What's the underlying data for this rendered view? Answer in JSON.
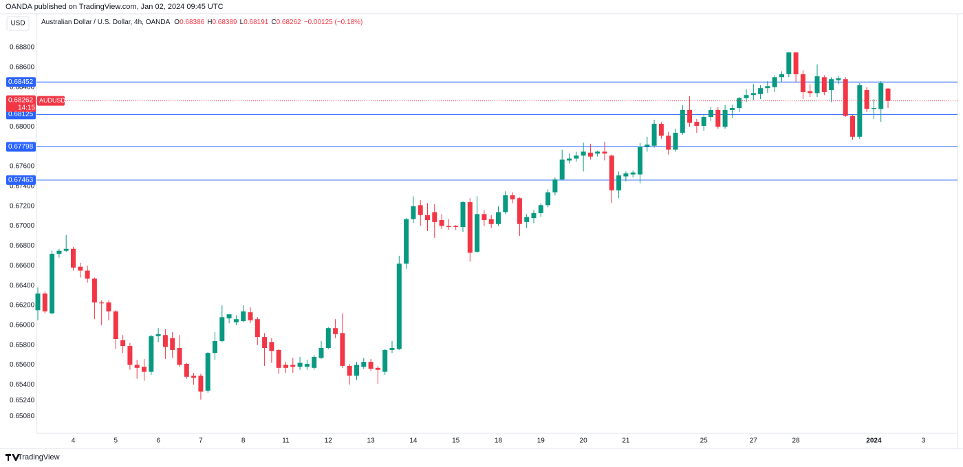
{
  "header": "OANDA published on TradingView.com, Jan 02, 2024 09:45 UTC",
  "footer": "TradingView",
  "currency_button": "USD",
  "chart_data": {
    "type": "candlestick",
    "title": "Australian Dollar / U.S. Dollar, 4h, OANDA",
    "ohlc_legend": [
      {
        "label": "O",
        "value": 0.68386
      },
      {
        "label": "H",
        "value": 0.68389
      },
      {
        "label": "L",
        "value": 0.68191
      },
      {
        "label": "C",
        "value": 0.68262
      }
    ],
    "change": "−0.00125 (−0.18%)",
    "up_color": "#089981",
    "down_color": "#f23645",
    "open": [
      0.6615,
      0.6632,
      0.6612,
      0.6672,
      0.6675,
      0.6677,
      0.6659,
      0.6655,
      0.6647,
      0.6623,
      0.6623,
      0.6614,
      0.6585,
      0.6579,
      0.656,
      0.6558,
      0.6553,
      0.6589,
      0.659,
      0.6587,
      0.6577,
      0.6561,
      0.6549,
      0.6549,
      0.6534,
      0.6572,
      0.6584,
      0.6607,
      0.6603,
      0.6604,
      0.6613,
      0.6606,
      0.6588,
      0.6583,
      0.6575,
      0.656,
      0.656,
      0.6558,
      0.6558,
      0.6557,
      0.6567,
      0.6577,
      0.6597,
      0.6592,
      0.6559,
      0.6549,
      0.6558,
      0.6563,
      0.6557,
      0.6553,
      0.6575,
      0.6576,
      0.6662,
      0.6707,
      0.6721,
      0.6711,
      0.6714,
      0.6706,
      0.67,
      0.67,
      0.6699,
      0.6724,
      0.6674,
      0.6712,
      0.6707,
      0.6702,
      0.6714,
      0.6731,
      0.6728,
      0.6704,
      0.6708,
      0.6713,
      0.6721,
      0.6734,
      0.6747,
      0.6766,
      0.6768,
      0.6771,
      0.6774,
      0.6773,
      0.6775,
      0.6771,
      0.6736,
      0.675,
      0.6752,
      0.6752,
      0.678,
      0.6781,
      0.6803,
      0.6791,
      0.6777,
      0.6794,
      0.6817,
      0.6805,
      0.6801,
      0.681,
      0.6817,
      0.68,
      0.6817,
      0.6819,
      0.6829,
      0.6832,
      0.6833,
      0.6839,
      0.684,
      0.685,
      0.6853,
      0.6875,
      0.6853,
      0.6836,
      0.6834,
      0.685,
      0.6837,
      0.6847,
      0.6848,
      0.6811,
      0.679,
      0.6837,
      0.6818,
      0.6818,
      0.68386
    ],
    "high": [
      0.6638,
      0.6634,
      0.6675,
      0.6677,
      0.6691,
      0.6679,
      0.6663,
      0.666,
      0.6648,
      0.6625,
      0.6625,
      0.6615,
      0.659,
      0.6582,
      0.6565,
      0.6566,
      0.659,
      0.6597,
      0.6596,
      0.6593,
      0.659,
      0.6562,
      0.6552,
      0.6551,
      0.6573,
      0.6593,
      0.662,
      0.6611,
      0.661,
      0.662,
      0.6618,
      0.6608,
      0.6592,
      0.6587,
      0.6576,
      0.6563,
      0.6567,
      0.6568,
      0.6565,
      0.657,
      0.6584,
      0.6598,
      0.6606,
      0.6612,
      0.6561,
      0.6563,
      0.6567,
      0.6566,
      0.6559,
      0.6576,
      0.6584,
      0.667,
      0.6708,
      0.673,
      0.6726,
      0.6723,
      0.6722,
      0.6712,
      0.6707,
      0.6701,
      0.6725,
      0.6728,
      0.673,
      0.6716,
      0.6711,
      0.672,
      0.6735,
      0.6734,
      0.6729,
      0.6712,
      0.6716,
      0.6723,
      0.6737,
      0.6749,
      0.6777,
      0.6773,
      0.6775,
      0.6784,
      0.6783,
      0.6776,
      0.6785,
      0.6772,
      0.6755,
      0.6755,
      0.6756,
      0.6784,
      0.679,
      0.6807,
      0.6805,
      0.6795,
      0.6798,
      0.6822,
      0.6831,
      0.6808,
      0.6812,
      0.682,
      0.682,
      0.6822,
      0.6822,
      0.683,
      0.6838,
      0.6843,
      0.6842,
      0.6846,
      0.6852,
      0.6856,
      0.6875,
      0.6875,
      0.6857,
      0.6843,
      0.6863,
      0.6852,
      0.685,
      0.6851,
      0.685,
      0.6812,
      0.6844,
      0.684,
      0.6828,
      0.6846,
      0.68389
    ],
    "low": [
      0.6605,
      0.6612,
      0.6611,
      0.6668,
      0.6674,
      0.6655,
      0.6648,
      0.6643,
      0.6606,
      0.66,
      0.6605,
      0.6576,
      0.6572,
      0.6555,
      0.6546,
      0.6544,
      0.655,
      0.6583,
      0.6566,
      0.6567,
      0.6558,
      0.6546,
      0.654,
      0.6525,
      0.6532,
      0.6565,
      0.6583,
      0.6602,
      0.66,
      0.6603,
      0.6602,
      0.658,
      0.6559,
      0.6562,
      0.6551,
      0.6552,
      0.6552,
      0.6555,
      0.6555,
      0.6555,
      0.6566,
      0.6576,
      0.6587,
      0.6557,
      0.654,
      0.6545,
      0.6556,
      0.6554,
      0.6541,
      0.655,
      0.6572,
      0.6575,
      0.6657,
      0.6703,
      0.67,
      0.6695,
      0.6688,
      0.6697,
      0.6696,
      0.6696,
      0.6694,
      0.6664,
      0.6673,
      0.67,
      0.6698,
      0.67,
      0.6712,
      0.6723,
      0.669,
      0.6698,
      0.6703,
      0.6709,
      0.6719,
      0.6731,
      0.6746,
      0.6763,
      0.6765,
      0.6755,
      0.6767,
      0.677,
      0.6766,
      0.6723,
      0.6728,
      0.6745,
      0.6749,
      0.6743,
      0.6775,
      0.6779,
      0.6788,
      0.6772,
      0.6775,
      0.6792,
      0.68,
      0.6794,
      0.6796,
      0.6806,
      0.6798,
      0.6798,
      0.6809,
      0.6815,
      0.6825,
      0.6827,
      0.6828,
      0.6834,
      0.6835,
      0.6845,
      0.685,
      0.6845,
      0.6828,
      0.683,
      0.683,
      0.6832,
      0.6825,
      0.6843,
      0.681,
      0.6787,
      0.6788,
      0.6815,
      0.6808,
      0.6805,
      0.68191
    ],
    "close": [
      0.6632,
      0.6614,
      0.6672,
      0.6675,
      0.6677,
      0.6658,
      0.6655,
      0.6647,
      0.6623,
      0.6622,
      0.6614,
      0.6586,
      0.6579,
      0.656,
      0.6557,
      0.6553,
      0.6589,
      0.6591,
      0.6578,
      0.6575,
      0.656,
      0.6548,
      0.6547,
      0.6533,
      0.6572,
      0.6584,
      0.6608,
      0.6611,
      0.6606,
      0.6614,
      0.6605,
      0.6588,
      0.6577,
      0.6574,
      0.6557,
      0.6557,
      0.6558,
      0.6562,
      0.6561,
      0.6568,
      0.6577,
      0.6597,
      0.6591,
      0.6559,
      0.6549,
      0.656,
      0.6563,
      0.6556,
      0.6555,
      0.6575,
      0.6577,
      0.6662,
      0.6707,
      0.672,
      0.6711,
      0.6706,
      0.6704,
      0.67,
      0.6699,
      0.6699,
      0.6724,
      0.6673,
      0.6712,
      0.6706,
      0.6702,
      0.6714,
      0.6731,
      0.6727,
      0.6702,
      0.6709,
      0.6713,
      0.6721,
      0.6734,
      0.6747,
      0.6767,
      0.6768,
      0.6771,
      0.6775,
      0.677,
      0.6775,
      0.6773,
      0.6736,
      0.6751,
      0.6753,
      0.6754,
      0.678,
      0.6782,
      0.6803,
      0.6791,
      0.6777,
      0.6794,
      0.6817,
      0.6804,
      0.6801,
      0.681,
      0.6817,
      0.68,
      0.6817,
      0.6819,
      0.6829,
      0.6832,
      0.6834,
      0.6839,
      0.6841,
      0.685,
      0.6853,
      0.6875,
      0.6853,
      0.6835,
      0.6834,
      0.6851,
      0.6835,
      0.6848,
      0.6849,
      0.6811,
      0.679,
      0.6842,
      0.6818,
      0.6819,
      0.6844,
      0.68262
    ],
    "xticks": [
      {
        "value": 5,
        "label": "4"
      },
      {
        "value": 11,
        "label": "5"
      },
      {
        "value": 17,
        "label": "6"
      },
      {
        "value": 23,
        "label": "7"
      },
      {
        "value": 29,
        "label": "8"
      },
      {
        "value": 35,
        "label": "11"
      },
      {
        "value": 41,
        "label": "12"
      },
      {
        "value": 47,
        "label": "13"
      },
      {
        "value": 53,
        "label": "14"
      },
      {
        "value": 59,
        "label": "15"
      },
      {
        "value": 65,
        "label": "18"
      },
      {
        "value": 71,
        "label": "19"
      },
      {
        "value": 77,
        "label": "20"
      },
      {
        "value": 83,
        "label": "21"
      },
      {
        "value": 94,
        "label": "25"
      },
      {
        "value": 101,
        "label": "27"
      },
      {
        "value": 107,
        "label": "28"
      },
      {
        "value": 118,
        "label": "2024"
      },
      {
        "value": 125,
        "label": "3"
      }
    ],
    "ylim": [
      0.6491,
      0.6914
    ],
    "yticks": [
      {
        "value": 0.688,
        "label": "0.68800"
      },
      {
        "value": 0.686,
        "label": "0.68600"
      },
      {
        "value": 0.684,
        "label": "0.68400"
      },
      {
        "value": 0.68,
        "label": "0.68000"
      },
      {
        "value": 0.676,
        "label": "0.67600"
      },
      {
        "value": 0.674,
        "label": "0.67400"
      },
      {
        "value": 0.672,
        "label": "0.67200"
      },
      {
        "value": 0.67,
        "label": "0.67000"
      },
      {
        "value": 0.668,
        "label": "0.66800"
      },
      {
        "value": 0.666,
        "label": "0.66600"
      },
      {
        "value": 0.664,
        "label": "0.66400"
      },
      {
        "value": 0.662,
        "label": "0.66200"
      },
      {
        "value": 0.66,
        "label": "0.66000"
      },
      {
        "value": 0.658,
        "label": "0.65800"
      },
      {
        "value": 0.656,
        "label": "0.65600"
      },
      {
        "value": 0.654,
        "label": "0.65400"
      },
      {
        "value": 0.6524,
        "label": "0.65240"
      },
      {
        "value": 0.6508,
        "label": "0.65080"
      }
    ],
    "grid": false,
    "levels": [
      0.68452,
      0.68125,
      0.67798,
      0.67463
    ],
    "level_color": "#2962ff",
    "last_price": 0.68262,
    "symbol": "AUDUSD",
    "countdown": "14:15"
  }
}
